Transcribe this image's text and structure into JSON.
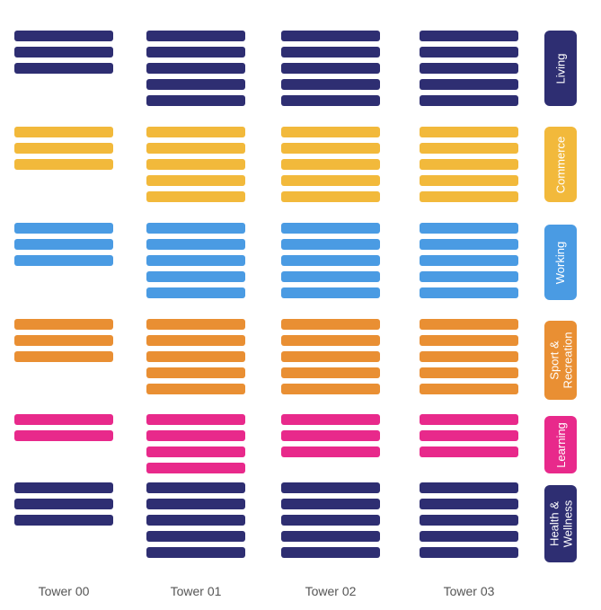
{
  "towers": [
    {
      "label": "Tower 00"
    },
    {
      "label": "Tower 01"
    },
    {
      "label": "Tower 02"
    },
    {
      "label": "Tower 03"
    }
  ],
  "categories": [
    {
      "label": "Living",
      "color": "#2e2e72",
      "bars": [
        3,
        5,
        5,
        5
      ]
    },
    {
      "label": "Commerce",
      "color": "#f2b93b",
      "bars": [
        3,
        5,
        5,
        5
      ]
    },
    {
      "label": "Working",
      "color": "#4a9be3",
      "bars": [
        3,
        5,
        5,
        5
      ]
    },
    {
      "label": "Sport &\nRecreation",
      "color": "#e98f33",
      "bars": [
        3,
        5,
        5,
        5
      ]
    },
    {
      "label": "Learning",
      "color": "#e8298b",
      "bars": [
        2,
        4,
        3,
        3
      ]
    },
    {
      "label": "Health &\nWellness",
      "color": "#2e2e72",
      "bars": [
        3,
        5,
        5,
        5
      ]
    }
  ]
}
